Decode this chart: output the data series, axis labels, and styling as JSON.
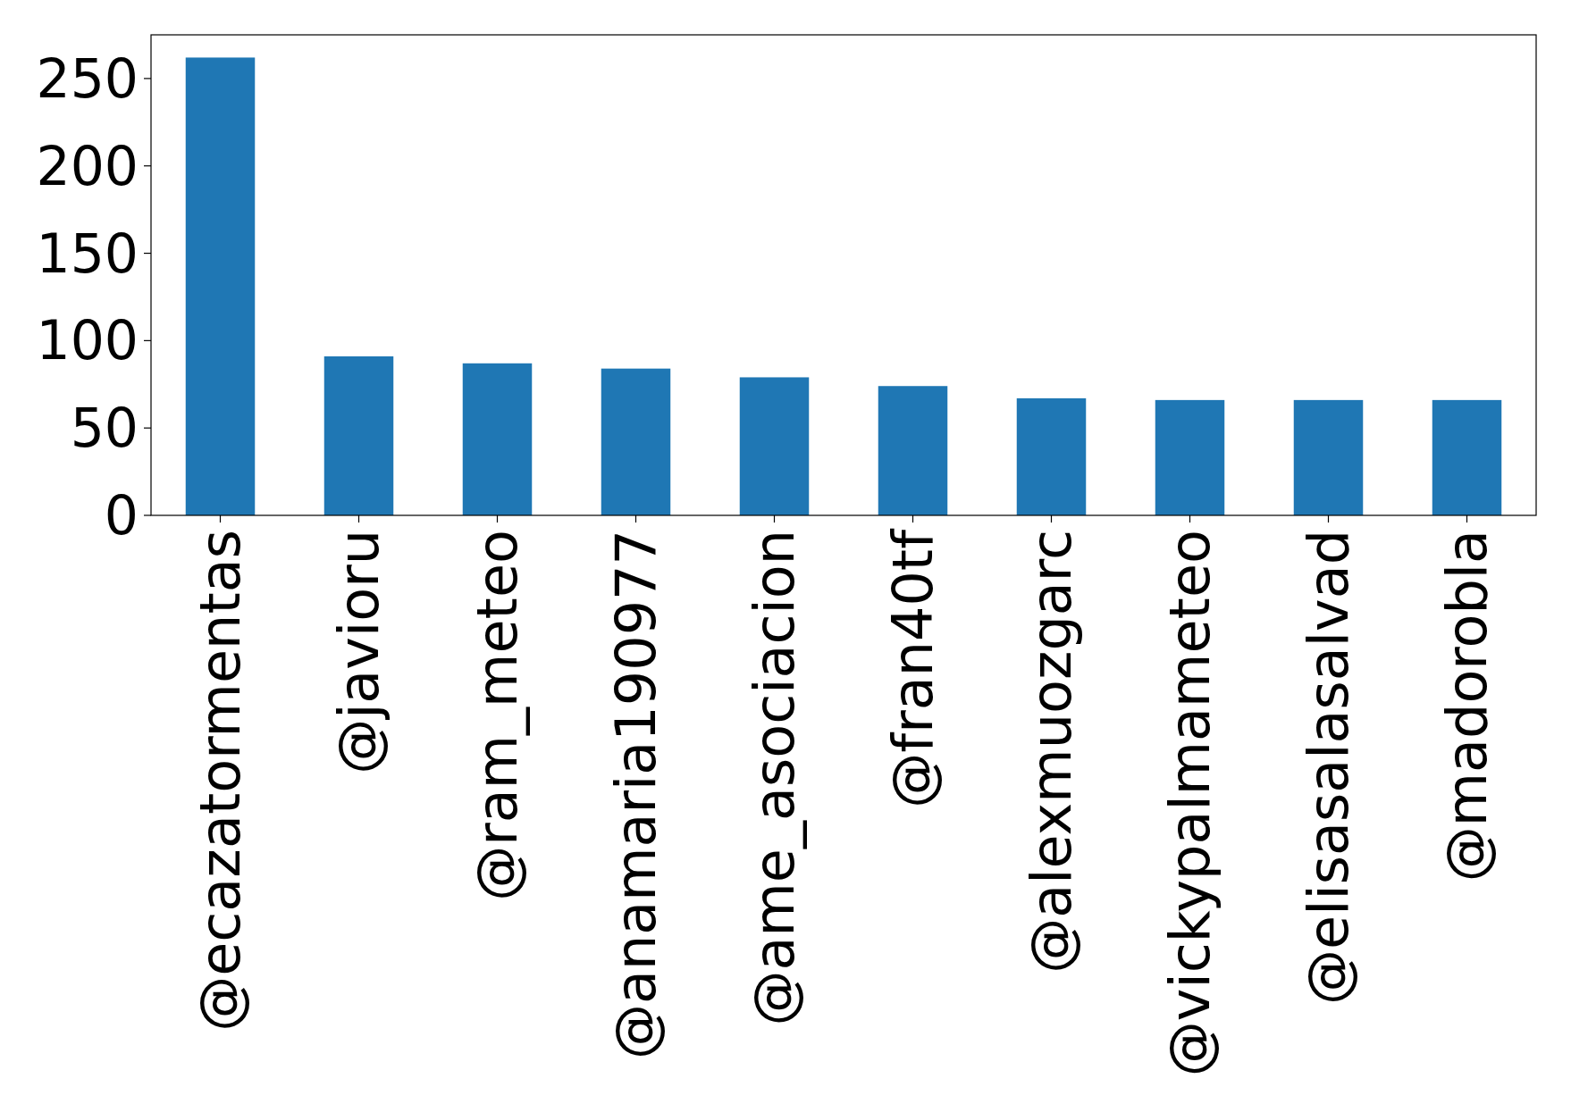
{
  "chart_data": {
    "type": "bar",
    "categories": [
      "@ecazatormentas",
      "@javioru",
      "@ram_meteo",
      "@anamaria190977",
      "@ame_asociacion",
      "@fran40tf",
      "@alexmuozgarc",
      "@vickypalmameteo",
      "@elisasalasalvad",
      "@madorobla"
    ],
    "values": [
      262,
      91,
      87,
      84,
      79,
      74,
      67,
      66,
      66,
      66
    ],
    "color": "#1f77b4",
    "ylim": [
      0,
      275
    ],
    "yticks": [
      0,
      50,
      100,
      150,
      200,
      250
    ]
  }
}
